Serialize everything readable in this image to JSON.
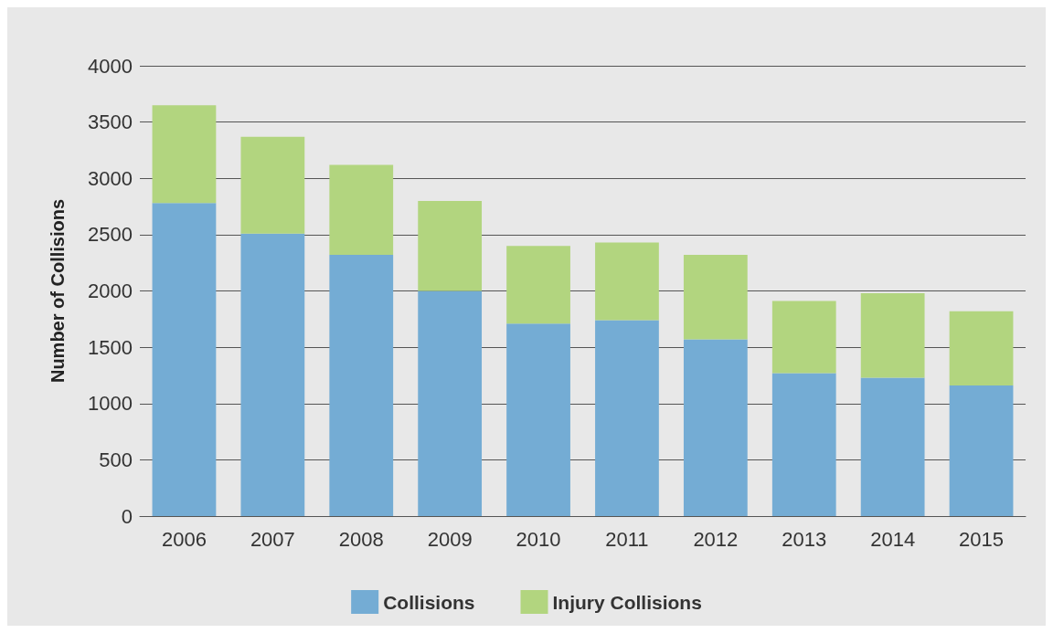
{
  "chart_data": {
    "type": "bar",
    "stacked": true,
    "ylabel": "Number of Collisions",
    "categories": [
      "2006",
      "2007",
      "2008",
      "2009",
      "2010",
      "2011",
      "2012",
      "2013",
      "2014",
      "2015"
    ],
    "series": [
      {
        "name": "Collisions",
        "color": "#74acd4",
        "values": [
          2780,
          2510,
          2320,
          2000,
          1710,
          1740,
          1570,
          1270,
          1230,
          1160
        ]
      },
      {
        "name": "Injury Collisions",
        "color": "#b2d57f",
        "values": [
          870,
          860,
          800,
          800,
          690,
          690,
          750,
          640,
          750,
          660
        ]
      }
    ],
    "ylim": [
      0,
      4000
    ],
    "yticks": [
      0,
      500,
      1000,
      1500,
      2000,
      2500,
      3000,
      3500,
      4000
    ],
    "grid": "y",
    "legend": "bottom"
  }
}
